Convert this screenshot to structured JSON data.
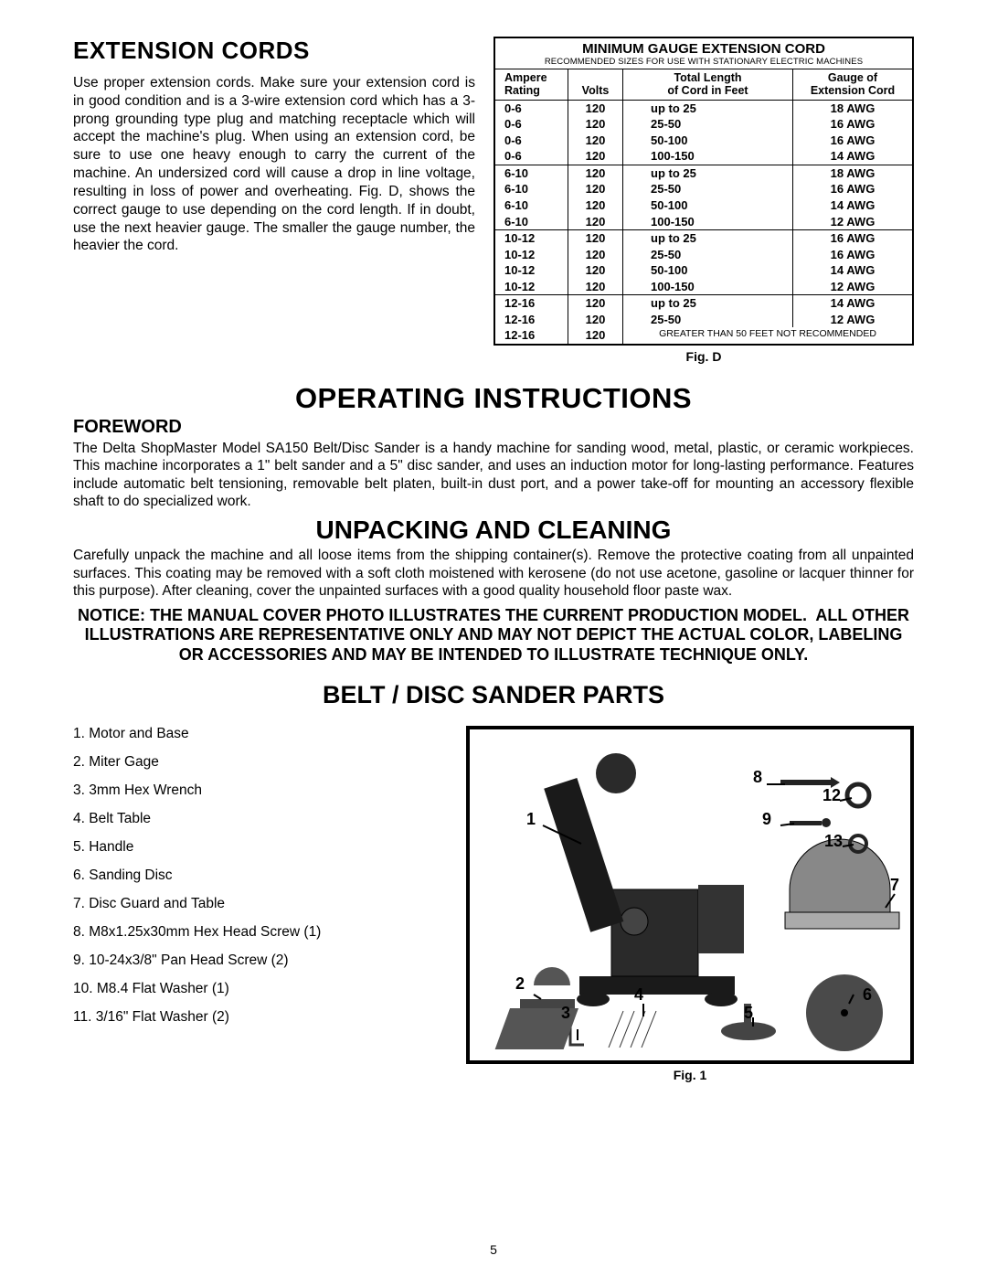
{
  "extension": {
    "title": "EXTENSION CORDS",
    "body": "Use proper extension cords. Make sure your extension cord is in good condition and is a 3-wire extension cord which has a 3-prong grounding type plug and matching receptacle which will accept the machine's plug. When using an extension cord, be sure to use one heavy enough to carry the current of the machine. An undersized cord will cause a drop in line voltage, resulting in loss of power and overheating. Fig. D, shows the correct gauge to use depending on the cord length. If in doubt, use the next heavier gauge. The smaller the gauge number, the heavier the cord."
  },
  "table": {
    "title": "MINIMUM GAUGE EXTENSION CORD",
    "subtitle": "RECOMMENDED SIZES FOR USE WITH STATIONARY ELECTRIC MACHINES",
    "header": {
      "amp1": "Ampere",
      "amp2": "Rating",
      "volts": "Volts",
      "len1": "Total Length",
      "len2": "of Cord in Feet",
      "g1": "Gauge of",
      "g2": "Extension Cord"
    },
    "groups": [
      {
        "rows": [
          {
            "amp": "0-6",
            "volts": "120",
            "len": "up to 25",
            "gauge": "18 AWG"
          },
          {
            "amp": "0-6",
            "volts": "120",
            "len": "25-50",
            "gauge": "16 AWG"
          },
          {
            "amp": "0-6",
            "volts": "120",
            "len": "50-100",
            "gauge": "16 AWG"
          },
          {
            "amp": "0-6",
            "volts": "120",
            "len": "100-150",
            "gauge": "14 AWG"
          }
        ]
      },
      {
        "rows": [
          {
            "amp": "6-10",
            "volts": "120",
            "len": "up to 25",
            "gauge": "18 AWG"
          },
          {
            "amp": "6-10",
            "volts": "120",
            "len": "25-50",
            "gauge": "16 AWG"
          },
          {
            "amp": "6-10",
            "volts": "120",
            "len": "50-100",
            "gauge": "14 AWG"
          },
          {
            "amp": "6-10",
            "volts": "120",
            "len": "100-150",
            "gauge": "12 AWG"
          }
        ]
      },
      {
        "rows": [
          {
            "amp": "10-12",
            "volts": "120",
            "len": "up to 25",
            "gauge": "16 AWG"
          },
          {
            "amp": "10-12",
            "volts": "120",
            "len": "25-50",
            "gauge": "16 AWG"
          },
          {
            "amp": "10-12",
            "volts": "120",
            "len": "50-100",
            "gauge": "14 AWG"
          },
          {
            "amp": "10-12",
            "volts": "120",
            "len": "100-150",
            "gauge": "12 AWG"
          }
        ]
      },
      {
        "rows": [
          {
            "amp": "12-16",
            "volts": "120",
            "len": "up to 25",
            "gauge": "14 AWG"
          },
          {
            "amp": "12-16",
            "volts": "120",
            "len": "25-50",
            "gauge": "12 AWG"
          }
        ],
        "note_amp": "12-16",
        "note_volts": "120",
        "note": "GREATER THAN 50 FEET NOT RECOMMENDED"
      }
    ],
    "fig": "Fig. D"
  },
  "operating": {
    "title": "OPERATING INSTRUCTIONS",
    "foreword_label": "FOREWORD",
    "foreword": "The Delta ShopMaster Model SA150 Belt/Disc Sander is a handy machine for sanding wood, metal, plastic, or ceramic workpieces. This machine incorporates a 1\" belt sander and a 5\" disc sander, and uses an induction motor for long-lasting performance. Features include automatic belt tensioning, removable belt platen, built-in dust port, and a power take-off for mounting an accessory flexible shaft to do specialized work."
  },
  "unpacking": {
    "title": "UNPACKING AND CLEANING",
    "body": "Carefully unpack the machine and all loose items from the shipping container(s). Remove the protective coating from all unpainted surfaces. This coating may be removed with a soft cloth moistened with kerosene (do not use acetone, gasoline or lacquer thinner for this purpose). After cleaning, cover the unpainted surfaces with a good quality household floor paste wax.",
    "notice": "NOTICE: THE MANUAL COVER PHOTO ILLUSTRATES THE CURRENT PRODUCTION MODEL.  ALL OTHER ILLUSTRATIONS ARE REPRESENTATIVE ONLY AND MAY NOT DEPICT THE ACTUAL COLOR, LABELING OR ACCESSORIES AND MAY BE INTENDED TO ILLUSTRATE TECHNIQUE ONLY."
  },
  "parts": {
    "title": "BELT / DISC SANDER PARTS",
    "items": [
      "1.   Motor and Base",
      "2.   Miter Gage",
      "3.   3mm Hex Wrench",
      "4.   Belt Table",
      "5.   Handle",
      "6.   Sanding Disc",
      "7.   Disc Guard and Table",
      "8.   M8x1.25x30mm Hex Head Screw (1)",
      "9.   10-24x3/8\" Pan Head Screw (2)",
      "10. M8.4 Flat Washer (1)",
      "11. 3/16\" Flat Washer (2)"
    ],
    "fig": "Fig. 1",
    "callouts": {
      "c1": "1",
      "c2": "2",
      "c3": "3",
      "c4": "4",
      "c5": "5",
      "c6": "6",
      "c7": "7",
      "c8": "8",
      "c9": "9",
      "c12": "12",
      "c13": "13"
    }
  },
  "page": "5"
}
